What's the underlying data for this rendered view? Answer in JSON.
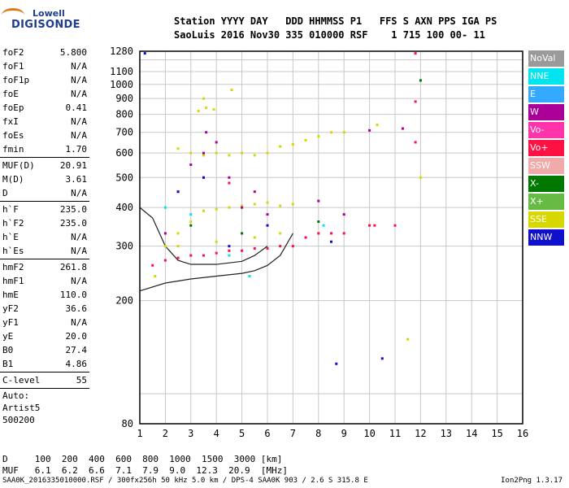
{
  "logo": {
    "line1": "Lowell",
    "line2": "DIGISONDE"
  },
  "header": {
    "line1": "Station YYYY DAY   DDD HHMMSS P1   FFS S AXN PPS IGA PS",
    "line2": "SaoLuis 2016 Nov30 335 010000 RSF    1 715 100 00- 11"
  },
  "params": {
    "group1": [
      {
        "name": "foF2",
        "value": "5.800"
      },
      {
        "name": "foF1",
        "value": "N/A"
      },
      {
        "name": "foF1p",
        "value": "N/A"
      },
      {
        "name": "foE",
        "value": "N/A"
      },
      {
        "name": "foEp",
        "value": "0.41"
      },
      {
        "name": "fxI",
        "value": "N/A"
      },
      {
        "name": "foEs",
        "value": "N/A"
      },
      {
        "name": "fmin",
        "value": "1.70"
      }
    ],
    "group2": [
      {
        "name": "MUF(D)",
        "value": "20.91"
      },
      {
        "name": "M(D)",
        "value": "3.61"
      },
      {
        "name": "D",
        "value": "N/A"
      }
    ],
    "group3": [
      {
        "name": "h`F",
        "value": "235.0"
      },
      {
        "name": "h`F2",
        "value": "235.0"
      },
      {
        "name": "h`E",
        "value": "N/A"
      },
      {
        "name": "h`Es",
        "value": "N/A"
      }
    ],
    "group4": [
      {
        "name": "hmF2",
        "value": "261.8"
      },
      {
        "name": "hmF1",
        "value": "N/A"
      },
      {
        "name": "hmE",
        "value": "110.0"
      },
      {
        "name": "yF2",
        "value": "36.6"
      },
      {
        "name": "yF1",
        "value": "N/A"
      },
      {
        "name": "yE",
        "value": "20.0"
      },
      {
        "name": "B0",
        "value": "27.4"
      },
      {
        "name": "B1",
        "value": "4.86"
      }
    ],
    "group5": [
      {
        "name": "C-level",
        "value": "55"
      }
    ],
    "autoscale": {
      "line1": "Auto:",
      "line2": "Artist5",
      "line3": "500200"
    }
  },
  "legend": [
    {
      "label": "NoVal",
      "color": "#9a9a9a"
    },
    {
      "label": "NNE",
      "color": "#00e5f0"
    },
    {
      "label": "E",
      "color": "#33aaff"
    },
    {
      "label": "W",
      "color": "#aa0099"
    },
    {
      "label": "Vo-",
      "color": "#ff33aa"
    },
    {
      "label": "Vo+",
      "color": "#ff1144"
    },
    {
      "label": "SSW",
      "color": "#f0aaaa"
    },
    {
      "label": "X-",
      "color": "#007700"
    },
    {
      "label": "X+",
      "color": "#66bb44"
    },
    {
      "label": "SSE",
      "color": "#d8d800"
    },
    {
      "label": "NNW",
      "color": "#1010cc"
    }
  ],
  "muf_table": {
    "line1": "D     100  200  400  600  800  1000  1500  3000 [km]",
    "line2": "MUF   6.1  6.2  6.6  7.1  7.9  9.0  12.3  20.9  [MHz]"
  },
  "footer": "SAA0K_2016335010000.RSF / 300fx256h 50 kHz 5.0 km / DPS-4 SAA0K 903 / 2.6 S 315.8 E",
  "version": "Ion2Png 1.3.17",
  "chart_data": {
    "type": "scatter",
    "title": "",
    "xlabel": "",
    "ylabel": "",
    "xlim": [
      1,
      16
    ],
    "x_ticks": [
      1,
      2,
      3,
      4,
      5,
      6,
      7,
      8,
      9,
      10,
      11,
      12,
      13,
      14,
      15,
      16
    ],
    "y_scale": "log",
    "ylim": [
      80,
      1280
    ],
    "y_ticks": [
      80,
      200,
      300,
      400,
      500,
      600,
      700,
      800,
      900,
      1000,
      1100,
      1280
    ],
    "grid": true,
    "series": [
      {
        "name": "SSE",
        "points": [
          [
            1.6,
            240
          ],
          [
            2.0,
            300
          ],
          [
            2.5,
            330
          ],
          [
            3.0,
            360
          ],
          [
            3.5,
            390
          ],
          [
            4.0,
            395
          ],
          [
            4.5,
            400
          ],
          [
            5.0,
            405
          ],
          [
            5.5,
            410
          ],
          [
            6.0,
            415
          ],
          [
            6.5,
            405
          ],
          [
            7.0,
            410
          ],
          [
            2.5,
            620
          ],
          [
            3.0,
            600
          ],
          [
            3.5,
            590
          ],
          [
            4.0,
            600
          ],
          [
            4.5,
            590
          ],
          [
            5.0,
            600
          ],
          [
            5.5,
            590
          ],
          [
            6.0,
            600
          ],
          [
            6.5,
            630
          ],
          [
            7.0,
            640
          ],
          [
            7.5,
            660
          ],
          [
            8.0,
            680
          ],
          [
            8.5,
            700
          ],
          [
            9.0,
            700
          ],
          [
            3.3,
            820
          ],
          [
            3.6,
            840
          ],
          [
            3.9,
            830
          ],
          [
            3.5,
            900
          ],
          [
            4.6,
            960
          ],
          [
            10.3,
            740
          ],
          [
            12.0,
            500
          ],
          [
            11.5,
            150
          ],
          [
            2.5,
            300
          ],
          [
            4.0,
            310
          ],
          [
            5.5,
            320
          ],
          [
            6.5,
            330
          ]
        ]
      },
      {
        "name": "Vo+",
        "points": [
          [
            1.5,
            260
          ],
          [
            2.0,
            270
          ],
          [
            2.5,
            275
          ],
          [
            3.0,
            280
          ],
          [
            3.5,
            280
          ],
          [
            4.0,
            285
          ],
          [
            4.5,
            290
          ],
          [
            5.0,
            290
          ],
          [
            5.5,
            295
          ],
          [
            6.0,
            295
          ],
          [
            6.5,
            300
          ],
          [
            7.0,
            300
          ],
          [
            7.5,
            320
          ],
          [
            8.0,
            330
          ],
          [
            8.5,
            330
          ],
          [
            9.0,
            330
          ],
          [
            2.5,
            450
          ],
          [
            3.5,
            500
          ],
          [
            4.5,
            480
          ],
          [
            10.0,
            350
          ],
          [
            10.2,
            350
          ],
          [
            11.0,
            350
          ],
          [
            11.8,
            880
          ],
          [
            11.8,
            1260
          ],
          [
            11.8,
            650
          ]
        ]
      },
      {
        "name": "W",
        "points": [
          [
            2.0,
            330
          ],
          [
            3.0,
            550
          ],
          [
            3.5,
            600
          ],
          [
            3.6,
            700
          ],
          [
            4.0,
            650
          ],
          [
            4.5,
            500
          ],
          [
            5.0,
            400
          ],
          [
            5.5,
            450
          ],
          [
            6.0,
            380
          ],
          [
            8.0,
            420
          ],
          [
            9.0,
            380
          ],
          [
            10.0,
            710
          ],
          [
            11.3,
            720
          ]
        ]
      },
      {
        "name": "NNW",
        "points": [
          [
            1.2,
            1260
          ],
          [
            2.5,
            450
          ],
          [
            3.5,
            500
          ],
          [
            4.5,
            300
          ],
          [
            6.0,
            350
          ],
          [
            8.5,
            310
          ],
          [
            10.5,
            130
          ],
          [
            8.7,
            125
          ]
        ]
      },
      {
        "name": "X-",
        "points": [
          [
            12.0,
            1030
          ],
          [
            3.0,
            350
          ],
          [
            5.0,
            330
          ],
          [
            8.0,
            360
          ]
        ]
      },
      {
        "name": "NNE",
        "points": [
          [
            2.0,
            400
          ],
          [
            3.0,
            380
          ],
          [
            4.5,
            280
          ],
          [
            8.2,
            350
          ],
          [
            5.3,
            240
          ]
        ]
      }
    ],
    "curve": {
      "name": "",
      "x": [
        1.0,
        2.0,
        3.0,
        4.0,
        5.0,
        5.5,
        6.0,
        6.5,
        7.0
      ],
      "y": [
        215,
        228,
        235,
        240,
        245,
        250,
        260,
        280,
        330
      ]
    },
    "curve_upper": {
      "name": "",
      "x": [
        1.0,
        1.5,
        2.0,
        2.5,
        3.0,
        4.0,
        5.0,
        5.5,
        6.0
      ],
      "y": [
        400,
        370,
        300,
        270,
        262,
        262,
        268,
        280,
        300
      ]
    }
  }
}
